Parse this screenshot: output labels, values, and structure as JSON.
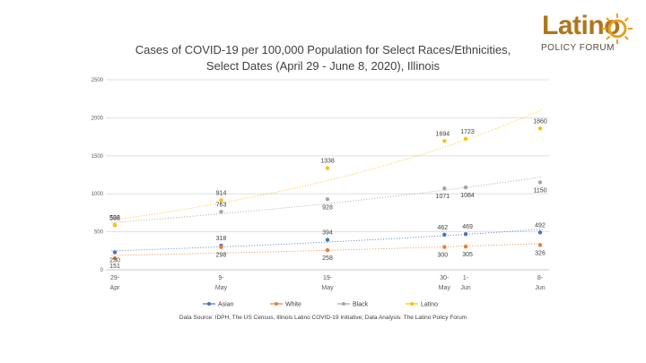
{
  "logo": {
    "word": "Latino",
    "sub": "POLICY FORUM"
  },
  "chart_data": {
    "type": "scatter",
    "title_line1": "Cases of COVID-19 per 100,000 Population for Select Races/Ethnicities,",
    "title_line2": "Select Dates (April 29 - June 8, 2020), Illinois",
    "xlabel": "",
    "ylabel": "",
    "ylim": [
      0,
      2500
    ],
    "yticks": [
      0,
      500,
      1000,
      1500,
      2000,
      2500
    ],
    "x_days": [
      0,
      10,
      20,
      31,
      33,
      40
    ],
    "x_labels": [
      [
        "29-",
        "Apr"
      ],
      [
        "9-",
        "May"
      ],
      [
        "19-",
        "May"
      ],
      [
        "30-",
        "May"
      ],
      [
        "1-",
        "Jun"
      ],
      [
        "8-",
        "Jun"
      ]
    ],
    "grid": true,
    "trendlines": "dotted",
    "legend_position": "bottom",
    "series": [
      {
        "name": "Asian",
        "color": "#4472c4",
        "values": [
          230,
          318,
          394,
          462,
          469,
          492
        ],
        "labels": [
          "230",
          "318",
          "394",
          "462",
          "469",
          "492"
        ]
      },
      {
        "name": "White",
        "color": "#ed7d31",
        "values": [
          151,
          298,
          258,
          300,
          305,
          326
        ],
        "labels": [
          "151",
          "298",
          "258",
          "300",
          "305",
          "326"
        ]
      },
      {
        "name": "Black",
        "color": "#a5a5a5",
        "values": [
          586,
          763,
          928,
          1071,
          1084,
          1150
        ],
        "labels": [
          "586",
          "763",
          "928",
          "1071",
          "1084",
          "1150"
        ]
      },
      {
        "name": "Latino",
        "color": "#ffc000",
        "values": [
          592,
          914,
          1338,
          1694,
          1723,
          1860
        ],
        "labels": [
          "592",
          "914",
          "1338",
          "1694",
          "1723",
          "1860"
        ]
      }
    ],
    "source": "Data Source: IDPH, The US Census, Illinois Latino COVID-19 Initiative; Data Analysis: The Latino Policy Forum"
  }
}
